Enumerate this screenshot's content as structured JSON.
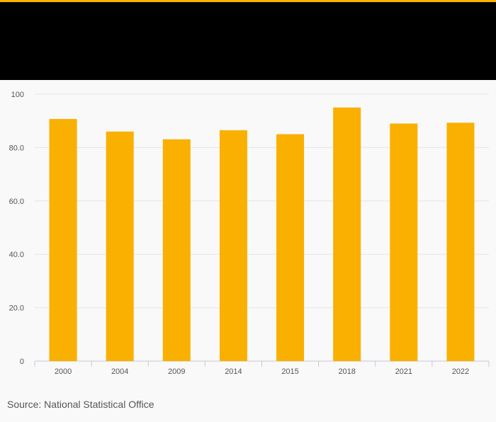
{
  "colors": {
    "accent": "#f9b000",
    "header_band": "#000000",
    "bar": "#f9b000",
    "background": "#f9f9f9",
    "grid": "#e6e6e6"
  },
  "source": "Source: National Statistical Office",
  "chart_data": {
    "type": "bar",
    "title": "",
    "xlabel": "",
    "ylabel": "",
    "categories": [
      "2000",
      "2004",
      "2009",
      "2014",
      "2015",
      "2018",
      "2021",
      "2022"
    ],
    "values": [
      90.7,
      86.0,
      83.1,
      86.5,
      85.0,
      95.0,
      89.0,
      89.3
    ],
    "ylim": [
      0,
      100
    ],
    "yticks": [
      0,
      20,
      40,
      60,
      80,
      100
    ],
    "ytick_labels": [
      "0",
      "20.0",
      "40.0",
      "60.0",
      "80.0",
      "100"
    ],
    "grid": true,
    "legend": "none"
  }
}
